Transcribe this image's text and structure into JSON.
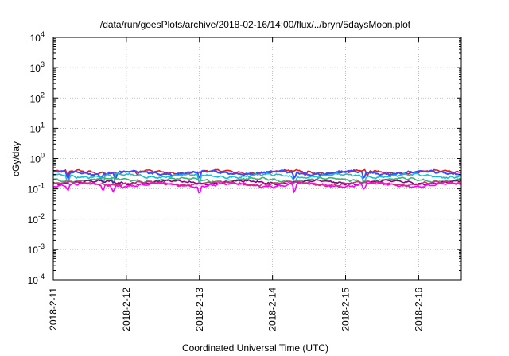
{
  "chart_data": {
    "type": "line",
    "title": "/data/run/goesPlots/archive/2018-02-16/14:00/flux/../bryn/5daysMoon.plot",
    "xlabel": "Coordinated Universal Time (UTC)",
    "ylabel": "cGy/day",
    "y_scale": "log",
    "ylim": [
      0.0001,
      10000
    ],
    "xlim": [
      "2018-02-11 00:00",
      "2018-02-16 14:00"
    ],
    "x_ticks": [
      "2018-2-11",
      "2018-2-12",
      "2018-2-13",
      "2018-2-14",
      "2018-2-15",
      "2018-2-16"
    ],
    "y_ticks": [
      {
        "base": "10",
        "exp": "-4"
      },
      {
        "base": "10",
        "exp": "-3"
      },
      {
        "base": "10",
        "exp": "-2"
      },
      {
        "base": "10",
        "exp": "-1"
      },
      {
        "base": "10",
        "exp": "0"
      },
      {
        "base": "10",
        "exp": "1"
      },
      {
        "base": "10",
        "exp": "2"
      },
      {
        "base": "10",
        "exp": "3"
      },
      {
        "base": "10",
        "exp": "4"
      }
    ],
    "grid": true,
    "series": [
      {
        "color": "#e41a1c",
        "base": 0.36,
        "dips": [
          {
            "day": 0.2,
            "value": 0.25
          },
          {
            "day": 1.15,
            "value": 0.27
          },
          {
            "day": 3.45,
            "value": 0.26
          },
          {
            "day": 4.3,
            "value": 0.26
          }
        ]
      },
      {
        "color": "#3b4bff",
        "base": 0.34,
        "dips": [
          {
            "day": 0.2,
            "value": 0.2
          },
          {
            "day": 0.65,
            "value": 0.2
          },
          {
            "day": 0.85,
            "value": 0.2
          },
          {
            "day": 2.0,
            "value": 0.2
          },
          {
            "day": 3.3,
            "value": 0.2
          },
          {
            "day": 4.25,
            "value": 0.2
          }
        ]
      },
      {
        "color": "#17becf",
        "base": 0.27,
        "dips": [
          {
            "day": 0.2,
            "value": 0.14
          },
          {
            "day": 0.68,
            "value": 0.13
          },
          {
            "day": 0.82,
            "value": 0.13
          },
          {
            "day": 2.0,
            "value": 0.13
          },
          {
            "day": 3.3,
            "value": 0.14
          },
          {
            "day": 4.25,
            "value": 0.14
          }
        ]
      },
      {
        "color": "#3cb371",
        "base": 0.2,
        "dips": []
      },
      {
        "color": "#8b008b",
        "base": 0.165,
        "dips": []
      },
      {
        "color": "#ff00ff",
        "base": 0.135,
        "dips": [
          {
            "day": 0.2,
            "value": 0.085
          },
          {
            "day": 0.68,
            "value": 0.08
          },
          {
            "day": 0.82,
            "value": 0.08
          },
          {
            "day": 2.0,
            "value": 0.06
          },
          {
            "day": 3.3,
            "value": 0.07
          },
          {
            "day": 4.25,
            "value": 0.09
          }
        ]
      },
      {
        "color": "#cc3377",
        "base": 0.15,
        "dips": []
      }
    ]
  }
}
